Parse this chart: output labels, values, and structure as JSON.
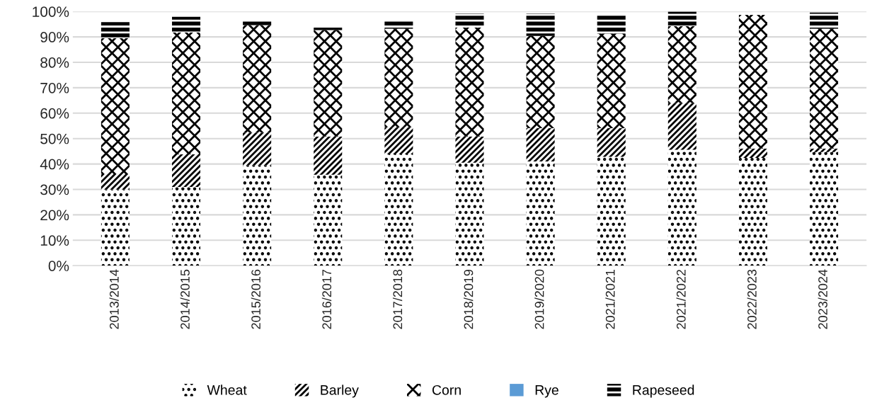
{
  "chart_data": {
    "type": "bar",
    "stacked": true,
    "categories": [
      "2013/2014",
      "2014/2015",
      "2015/2016",
      "2016/2017",
      "2017/2018",
      "2018/2019",
      "2019/2020",
      "2021/2021",
      "2021/2022",
      "2022/2023",
      "2023/2024"
    ],
    "series": [
      {
        "name": "Wheat",
        "color": "#000000",
        "values": [
          30,
          31,
          39.5,
          35.8,
          43.8,
          40.5,
          41,
          42.8,
          45.6,
          42.4,
          44.7
        ]
      },
      {
        "name": "Barley",
        "color": "#000000",
        "values": [
          6,
          12.8,
          12.8,
          15,
          10.8,
          10.3,
          13.1,
          11.3,
          18.4,
          3.7,
          1.4
        ]
      },
      {
        "name": "Corn",
        "color": "#000000",
        "values": [
          53.5,
          48,
          42.3,
          41.9,
          38.6,
          42.9,
          36.3,
          37.2,
          30.2,
          52.6,
          47.1
        ]
      },
      {
        "name": "Rye",
        "color": "#5b9bd5",
        "values": [
          0,
          0,
          0,
          0,
          0,
          0,
          0,
          0,
          0,
          0,
          0
        ]
      },
      {
        "name": "Rapeseed",
        "color": "#000000",
        "values": [
          6.3,
          6.1,
          2.1,
          1.3,
          3.1,
          5.5,
          8.8,
          7.4,
          5.7,
          0,
          6.4
        ]
      }
    ],
    "ylim": [
      0,
      100
    ],
    "yticks": [
      {
        "value": 0,
        "label": "0%"
      },
      {
        "value": 10,
        "label": "10%"
      },
      {
        "value": 20,
        "label": "20%"
      },
      {
        "value": 30,
        "label": "30%"
      },
      {
        "value": 40,
        "label": "40%"
      },
      {
        "value": 50,
        "label": "50%"
      },
      {
        "value": 60,
        "label": "60%"
      },
      {
        "value": 70,
        "label": "70%"
      },
      {
        "value": 80,
        "label": "80%"
      },
      {
        "value": 90,
        "label": "90%"
      },
      {
        "value": 100,
        "label": "100%"
      }
    ],
    "grid": "y",
    "legend": "bottom"
  }
}
